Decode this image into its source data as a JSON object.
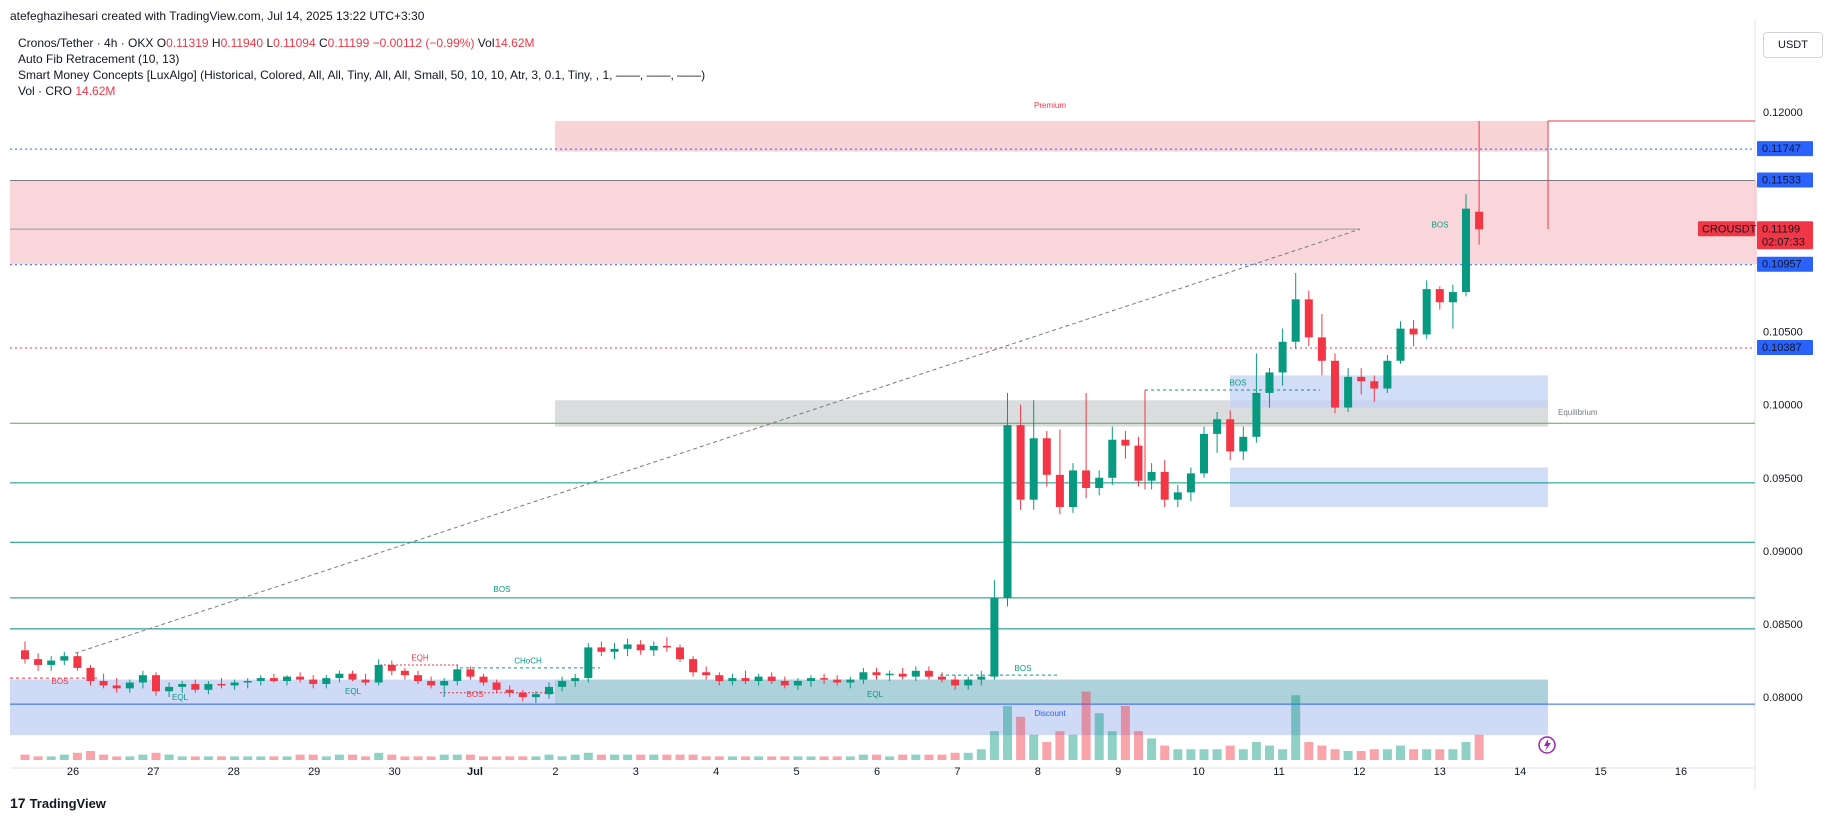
{
  "header": {
    "credit": "atefeghazihesari created with TradingView.com, Jul 14, 2025 13:22 UTC+3:30"
  },
  "legend": {
    "symbol": "Cronos/Tether · 4h · OKX",
    "open_label": "O",
    "open": "0.11319",
    "high_label": "H",
    "high": "0.11940",
    "low_label": "L",
    "low": "0.11094",
    "close_label": "C",
    "close": "0.11199",
    "change": "−0.00112 (−0.99%)",
    "vol_label": "Vol",
    "vol": "14.62M",
    "indicator1": "Auto Fib Retracement (10, 13)",
    "indicator2": "Smart Money Concepts [LuxAlgo] (Historical, Colored, All, All, Tiny, All, All, Small, 50, 10, 10, Atr, 3, 0.1, Tiny, , 1, ——, ——, ——)",
    "indicator3_label": "Vol · CRO",
    "indicator3_value": "14.62M"
  },
  "currency": "USDT",
  "footer": {
    "logo": "TradingView",
    "logo_mark": "17"
  },
  "colors": {
    "up": "#089981",
    "down": "#f23645",
    "blue_label": "#2962ff",
    "premium": "#f7c5c9",
    "discount": "#c3d1f5",
    "equilibrium": "#d5d6d8"
  },
  "chart_data": {
    "type": "candlestick",
    "symbol": "CROUSDT",
    "timeframe": "4h",
    "ylim": [
      0.0757,
      0.1222
    ],
    "y_ticks": [
      "0.12000",
      "0.10500",
      "0.10000",
      "0.09500",
      "0.09000",
      "0.08500",
      "0.08000"
    ],
    "x_ticks": [
      "26",
      "27",
      "28",
      "29",
      "30",
      "Jul",
      "2",
      "3",
      "4",
      "5",
      "6",
      "7",
      "8",
      "9",
      "10",
      "11",
      "12",
      "13",
      "14",
      "15",
      "16"
    ],
    "price_labels": [
      {
        "value": 0.11747,
        "text": "0.11747",
        "color": "#2962ff"
      },
      {
        "value": 0.11533,
        "text": "0.11533",
        "color": "#2962ff"
      },
      {
        "value": 0.11199,
        "text": "0.11199",
        "sub": "02:07:33",
        "tag": "CROUSDT",
        "color": "#f23645"
      },
      {
        "value": 0.10957,
        "text": "0.10957",
        "color": "#2962ff"
      },
      {
        "value": 0.10387,
        "text": "0.10387",
        "color": "#2962ff"
      }
    ],
    "zone_labels": {
      "premium": "Premium",
      "equilibrium": "Equilibrium",
      "discount": "Discount"
    },
    "structure_labels": [
      "BOS",
      "BOS",
      "BOS",
      "BOS",
      "BOS",
      "CHoCH",
      "EQH",
      "EQL",
      "EQL",
      "EQL",
      "BOS"
    ],
    "fib_levels": [
      0.11747,
      0.11533,
      0.10957,
      0.09873,
      0.09465,
      0.09059,
      0.08679,
      0.08467,
      0.07952
    ],
    "candles": [
      [
        0.0832,
        0.0838,
        0.0823,
        0.0826,
        3
      ],
      [
        0.0826,
        0.083,
        0.0818,
        0.0822,
        2
      ],
      [
        0.0822,
        0.0828,
        0.0818,
        0.0825,
        2
      ],
      [
        0.0825,
        0.0831,
        0.0822,
        0.0828,
        3
      ],
      [
        0.0828,
        0.083,
        0.0818,
        0.082,
        4
      ],
      [
        0.082,
        0.0822,
        0.0808,
        0.0811,
        5
      ],
      [
        0.0811,
        0.0816,
        0.0806,
        0.0808,
        3
      ],
      [
        0.0808,
        0.0813,
        0.0803,
        0.0806,
        2
      ],
      [
        0.0806,
        0.0812,
        0.0803,
        0.081,
        2
      ],
      [
        0.081,
        0.0818,
        0.0806,
        0.0815,
        3
      ],
      [
        0.0815,
        0.0817,
        0.0801,
        0.0804,
        4
      ],
      [
        0.0804,
        0.081,
        0.08,
        0.0807,
        3
      ],
      [
        0.0807,
        0.0811,
        0.0803,
        0.0809,
        2
      ],
      [
        0.0809,
        0.0812,
        0.0803,
        0.0805,
        2
      ],
      [
        0.0805,
        0.0811,
        0.0802,
        0.0809,
        2
      ],
      [
        0.0809,
        0.0813,
        0.0806,
        0.0808,
        2
      ],
      [
        0.0808,
        0.0812,
        0.0805,
        0.081,
        2
      ],
      [
        0.081,
        0.0813,
        0.0806,
        0.0811,
        2
      ],
      [
        0.0811,
        0.0815,
        0.0808,
        0.0813,
        2
      ],
      [
        0.0813,
        0.0816,
        0.081,
        0.0811,
        2
      ],
      [
        0.0811,
        0.0815,
        0.0808,
        0.0814,
        2
      ],
      [
        0.0814,
        0.0817,
        0.081,
        0.0812,
        3
      ],
      [
        0.0812,
        0.0815,
        0.0806,
        0.0809,
        3
      ],
      [
        0.0809,
        0.0815,
        0.0806,
        0.0813,
        2
      ],
      [
        0.0813,
        0.0818,
        0.081,
        0.0816,
        3
      ],
      [
        0.0816,
        0.0818,
        0.0811,
        0.0812,
        3
      ],
      [
        0.0812,
        0.0816,
        0.0808,
        0.081,
        2
      ],
      [
        0.081,
        0.0826,
        0.0808,
        0.0822,
        4
      ],
      [
        0.0822,
        0.0825,
        0.0815,
        0.0818,
        3
      ],
      [
        0.0818,
        0.082,
        0.0812,
        0.0815,
        2
      ],
      [
        0.0815,
        0.0818,
        0.0809,
        0.0811,
        2
      ],
      [
        0.0811,
        0.0814,
        0.0806,
        0.0808,
        2
      ],
      [
        0.0808,
        0.0813,
        0.08,
        0.0811,
        3
      ],
      [
        0.0811,
        0.0822,
        0.0808,
        0.0819,
        3
      ],
      [
        0.0819,
        0.0821,
        0.0812,
        0.0814,
        3
      ],
      [
        0.0814,
        0.0816,
        0.0808,
        0.081,
        2
      ],
      [
        0.081,
        0.0812,
        0.0803,
        0.0805,
        2
      ],
      [
        0.0805,
        0.0808,
        0.08,
        0.0803,
        2
      ],
      [
        0.0803,
        0.0805,
        0.0797,
        0.08,
        2
      ],
      [
        0.08,
        0.0804,
        0.0796,
        0.0802,
        2
      ],
      [
        0.0802,
        0.081,
        0.0799,
        0.0807,
        3
      ],
      [
        0.0807,
        0.0814,
        0.0804,
        0.0811,
        2
      ],
      [
        0.0811,
        0.0816,
        0.0807,
        0.0813,
        3
      ],
      [
        0.0813,
        0.0837,
        0.081,
        0.0834,
        4
      ],
      [
        0.0834,
        0.0838,
        0.0828,
        0.0831,
        3
      ],
      [
        0.0831,
        0.0837,
        0.0826,
        0.0833,
        3
      ],
      [
        0.0833,
        0.084,
        0.0828,
        0.0836,
        3
      ],
      [
        0.0836,
        0.0839,
        0.0829,
        0.0832,
        3
      ],
      [
        0.0832,
        0.0838,
        0.0828,
        0.0835,
        3
      ],
      [
        0.0835,
        0.0841,
        0.0831,
        0.0834,
        3
      ],
      [
        0.0834,
        0.0836,
        0.0824,
        0.0826,
        3
      ],
      [
        0.0826,
        0.0828,
        0.0814,
        0.0817,
        3
      ],
      [
        0.0817,
        0.0821,
        0.0812,
        0.0815,
        2
      ],
      [
        0.0815,
        0.0817,
        0.0808,
        0.0811,
        2
      ],
      [
        0.0811,
        0.0816,
        0.0808,
        0.0813,
        2
      ],
      [
        0.0813,
        0.0818,
        0.0809,
        0.0811,
        2
      ],
      [
        0.0811,
        0.0816,
        0.0808,
        0.0814,
        2
      ],
      [
        0.0814,
        0.0817,
        0.0809,
        0.0811,
        2
      ],
      [
        0.0811,
        0.0814,
        0.0806,
        0.0808,
        2
      ],
      [
        0.0808,
        0.0813,
        0.0805,
        0.0811,
        2
      ],
      [
        0.0811,
        0.0815,
        0.0807,
        0.0813,
        2
      ],
      [
        0.0813,
        0.0816,
        0.0809,
        0.0812,
        2
      ],
      [
        0.0812,
        0.0815,
        0.0808,
        0.081,
        2
      ],
      [
        0.081,
        0.0814,
        0.0806,
        0.0812,
        2
      ],
      [
        0.0812,
        0.082,
        0.0809,
        0.0817,
        3
      ],
      [
        0.0817,
        0.082,
        0.0812,
        0.0815,
        3
      ],
      [
        0.0815,
        0.0818,
        0.0811,
        0.0816,
        2
      ],
      [
        0.0816,
        0.082,
        0.0812,
        0.0814,
        3
      ],
      [
        0.0814,
        0.0821,
        0.0811,
        0.0818,
        3
      ],
      [
        0.0818,
        0.0821,
        0.0812,
        0.0814,
        3
      ],
      [
        0.0814,
        0.0817,
        0.081,
        0.0812,
        3
      ],
      [
        0.0812,
        0.0815,
        0.0805,
        0.0808,
        4
      ],
      [
        0.0808,
        0.0814,
        0.0805,
        0.0812,
        4
      ],
      [
        0.0812,
        0.0818,
        0.0808,
        0.0814,
        6
      ],
      [
        0.0814,
        0.088,
        0.0812,
        0.0868,
        16
      ],
      [
        0.0868,
        0.1008,
        0.0862,
        0.0986,
        30
      ],
      [
        0.0986,
        0.1,
        0.0928,
        0.0935,
        24
      ],
      [
        0.0935,
        0.1003,
        0.0928,
        0.0977,
        14
      ],
      [
        0.0977,
        0.0982,
        0.0944,
        0.0952,
        10
      ],
      [
        0.0952,
        0.0983,
        0.0925,
        0.093,
        16
      ],
      [
        0.093,
        0.096,
        0.0926,
        0.0955,
        14
      ],
      [
        0.0955,
        0.1008,
        0.0936,
        0.0943,
        38
      ],
      [
        0.0943,
        0.0955,
        0.0938,
        0.095,
        26
      ],
      [
        0.095,
        0.0985,
        0.0945,
        0.0976,
        16
      ],
      [
        0.0976,
        0.0982,
        0.0963,
        0.0972,
        30
      ],
      [
        0.0972,
        0.0978,
        0.0944,
        0.0948,
        16
      ],
      [
        0.0948,
        0.096,
        0.0942,
        0.0954,
        12
      ],
      [
        0.0954,
        0.0962,
        0.093,
        0.0935,
        8
      ],
      [
        0.0935,
        0.0945,
        0.093,
        0.094,
        6
      ],
      [
        0.094,
        0.0957,
        0.0934,
        0.0953,
        6
      ],
      [
        0.0953,
        0.0985,
        0.095,
        0.098,
        6
      ],
      [
        0.098,
        0.0995,
        0.0967,
        0.099,
        6
      ],
      [
        0.099,
        0.0996,
        0.0962,
        0.0968,
        8
      ],
      [
        0.0968,
        0.0985,
        0.0962,
        0.0978,
        6
      ],
      [
        0.0978,
        0.1035,
        0.0974,
        0.1008,
        10
      ],
      [
        0.1008,
        0.1025,
        0.0998,
        0.1022,
        8
      ],
      [
        0.1022,
        0.1052,
        0.1013,
        0.1043,
        6
      ],
      [
        0.1043,
        0.109,
        0.1038,
        0.1072,
        36
      ],
      [
        0.1072,
        0.1078,
        0.104,
        0.1046,
        10
      ],
      [
        0.1046,
        0.1062,
        0.102,
        0.103,
        8
      ],
      [
        0.103,
        0.1035,
        0.0994,
        0.0998,
        6
      ],
      [
        0.0998,
        0.1025,
        0.0995,
        0.1019,
        5
      ],
      [
        0.1019,
        0.1025,
        0.1007,
        0.1016,
        5
      ],
      [
        0.1016,
        0.102,
        0.1002,
        0.1011,
        6
      ],
      [
        0.1011,
        0.1034,
        0.1008,
        0.103,
        6
      ],
      [
        0.103,
        0.1057,
        0.1028,
        0.1052,
        8
      ],
      [
        0.1052,
        0.1058,
        0.104,
        0.1048,
        6
      ],
      [
        0.1048,
        0.1085,
        0.1045,
        0.1079,
        6
      ],
      [
        0.1079,
        0.1081,
        0.1065,
        0.107,
        6
      ],
      [
        0.107,
        0.1082,
        0.1052,
        0.1077,
        6
      ],
      [
        0.1077,
        0.1144,
        0.1074,
        0.1134,
        10
      ],
      [
        0.11319,
        0.1194,
        0.11094,
        0.11199,
        14
      ]
    ]
  }
}
